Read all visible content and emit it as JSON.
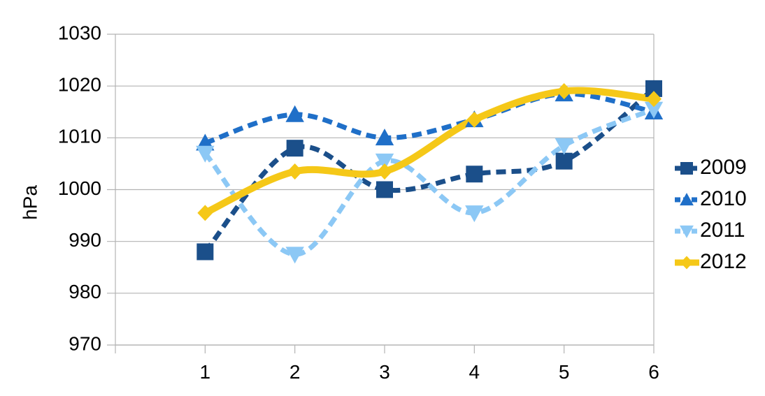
{
  "chart_data": {
    "type": "line",
    "title": "",
    "xlabel": "",
    "ylabel": "hPa",
    "x": [
      1,
      2,
      3,
      4,
      5,
      6
    ],
    "xticks": [
      "1",
      "2",
      "3",
      "4",
      "5",
      "6"
    ],
    "ylim": [
      970,
      1030
    ],
    "yticks": [
      "970",
      "980",
      "990",
      "1000",
      "1010",
      "1020",
      "1030"
    ],
    "grid": "horizontal",
    "smoothed": true,
    "legend_position": "right",
    "series": [
      {
        "name": "2009",
        "color": "#1b4f8a",
        "dash": "dashed",
        "marker": "square",
        "values": [
          988,
          1008,
          1000,
          1003,
          1005.5,
          1019.5
        ]
      },
      {
        "name": "2010",
        "color": "#1f6fc8",
        "dash": "dashed",
        "marker": "triangle-up",
        "values": [
          1009,
          1014.5,
          1010,
          1013.5,
          1018.5,
          1015
        ]
      },
      {
        "name": "2011",
        "color": "#8cc8f5",
        "dash": "dashed",
        "marker": "triangle-down",
        "values": [
          1007,
          987.5,
          1005.5,
          995.5,
          1008.5,
          1015.5
        ]
      },
      {
        "name": "2012",
        "color": "#f5c818",
        "dash": "solid",
        "marker": "diamond",
        "values": [
          995.5,
          1003.5,
          1003.5,
          1013.5,
          1019,
          1017.5
        ]
      }
    ]
  }
}
